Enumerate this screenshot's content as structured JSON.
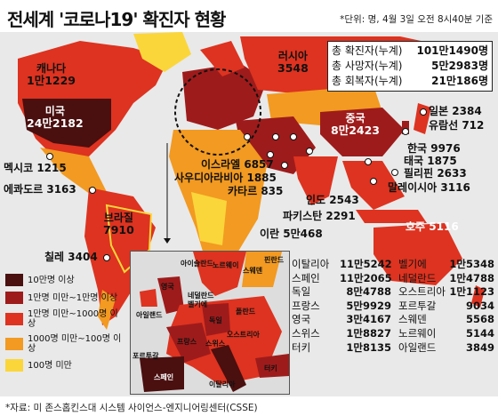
{
  "title": "전세계 '코로나19' 확진자 현황",
  "unit_note": "*단위: 명, 4월 3일 오전 8시40분 기준",
  "totals": [
    {
      "label": "총 확진자(누계)",
      "value": "101만1490명"
    },
    {
      "label": "총 사망자(누계)",
      "value": "5만2983명"
    },
    {
      "label": "총 회복자(누계)",
      "value": "21만186명"
    }
  ],
  "countries": {
    "canada": {
      "name": "캐나다",
      "value": "1만1229"
    },
    "usa": {
      "name": "미국",
      "value": "24만2182"
    },
    "russia": {
      "name": "러시아",
      "value": "3548"
    },
    "china": {
      "name": "중국",
      "value": "8만2423"
    },
    "japan": {
      "name": "일본",
      "value": "2384"
    },
    "cruise": {
      "name": "유람선",
      "value": "712"
    },
    "korea": {
      "name": "한국",
      "value": "9976"
    },
    "thailand": {
      "name": "태국",
      "value": "1875"
    },
    "philippines": {
      "name": "필리핀",
      "value": "2633"
    },
    "malaysia": {
      "name": "말레이시아",
      "value": "3116"
    },
    "mexico": {
      "name": "멕시코",
      "value": "1215"
    },
    "ecuador": {
      "name": "에콰도르",
      "value": "3163"
    },
    "brazil": {
      "name": "브라질",
      "value": "7910"
    },
    "chile": {
      "name": "칠레",
      "value": "3404"
    },
    "israel": {
      "name": "이스라엘",
      "value": "6857"
    },
    "saudi": {
      "name": "사우디아라비아",
      "value": "1885"
    },
    "qatar": {
      "name": "카타르",
      "value": "835"
    },
    "india": {
      "name": "인도",
      "value": "2543"
    },
    "pakistan": {
      "name": "파키스탄",
      "value": "2291"
    },
    "iran": {
      "name": "이란",
      "value": "5만468"
    },
    "australia": {
      "name": "호주",
      "value": "5116"
    }
  },
  "legend": [
    {
      "label": "10만명 이상",
      "color": "#4a0f0f"
    },
    {
      "label": "1만명 미만~1만명 이상",
      "color": "#9e1b1b"
    },
    {
      "label": "1만명 미만~1000명 이상",
      "color": "#dd3320"
    },
    {
      "label": "1000명 미만~100명 이상",
      "color": "#f29a21"
    },
    {
      "label": "100명 미만",
      "color": "#fbd63a"
    }
  ],
  "europe_map_labels": [
    "노르웨이",
    "스웨덴",
    "핀란드",
    "영국",
    "네덜란드",
    "벨기에",
    "아일랜드",
    "독일",
    "폴란드",
    "프랑스",
    "스위스",
    "오스트리아",
    "포르투갈",
    "스페인",
    "이탈리아",
    "터키",
    "아이슬란드"
  ],
  "europe_table": [
    {
      "name": "이탈리아",
      "value": "11만5242",
      "name2": "벨기에",
      "value2": "1만5348"
    },
    {
      "name": "스페인",
      "value": "11만2065",
      "name2": "네덜란드",
      "value2": "1만4788"
    },
    {
      "name": "독일",
      "value": "8만4788",
      "name2": "오스트리아",
      "value2": "1만1123"
    },
    {
      "name": "프랑스",
      "value": "5만9929",
      "name2": "포르투갈",
      "value2": "9034"
    },
    {
      "name": "영국",
      "value": "3만4167",
      "name2": "스웨덴",
      "value2": "5568"
    },
    {
      "name": "스위스",
      "value": "1만8827",
      "name2": "노르웨이",
      "value2": "5144"
    },
    {
      "name": "터키",
      "value": "1만8135",
      "name2": "아일랜드",
      "value2": "3849"
    }
  ],
  "source": "*자료: 미 존스홉킨스대 시스템 사이언스-엔지니어링센터(CSSE)",
  "colors": {
    "darkest": "#4a0f0f",
    "dark": "#9e1b1b",
    "red": "#dd3320",
    "orange": "#f29a21",
    "yellow": "#fbd63a",
    "background": "#e9e9e9"
  }
}
